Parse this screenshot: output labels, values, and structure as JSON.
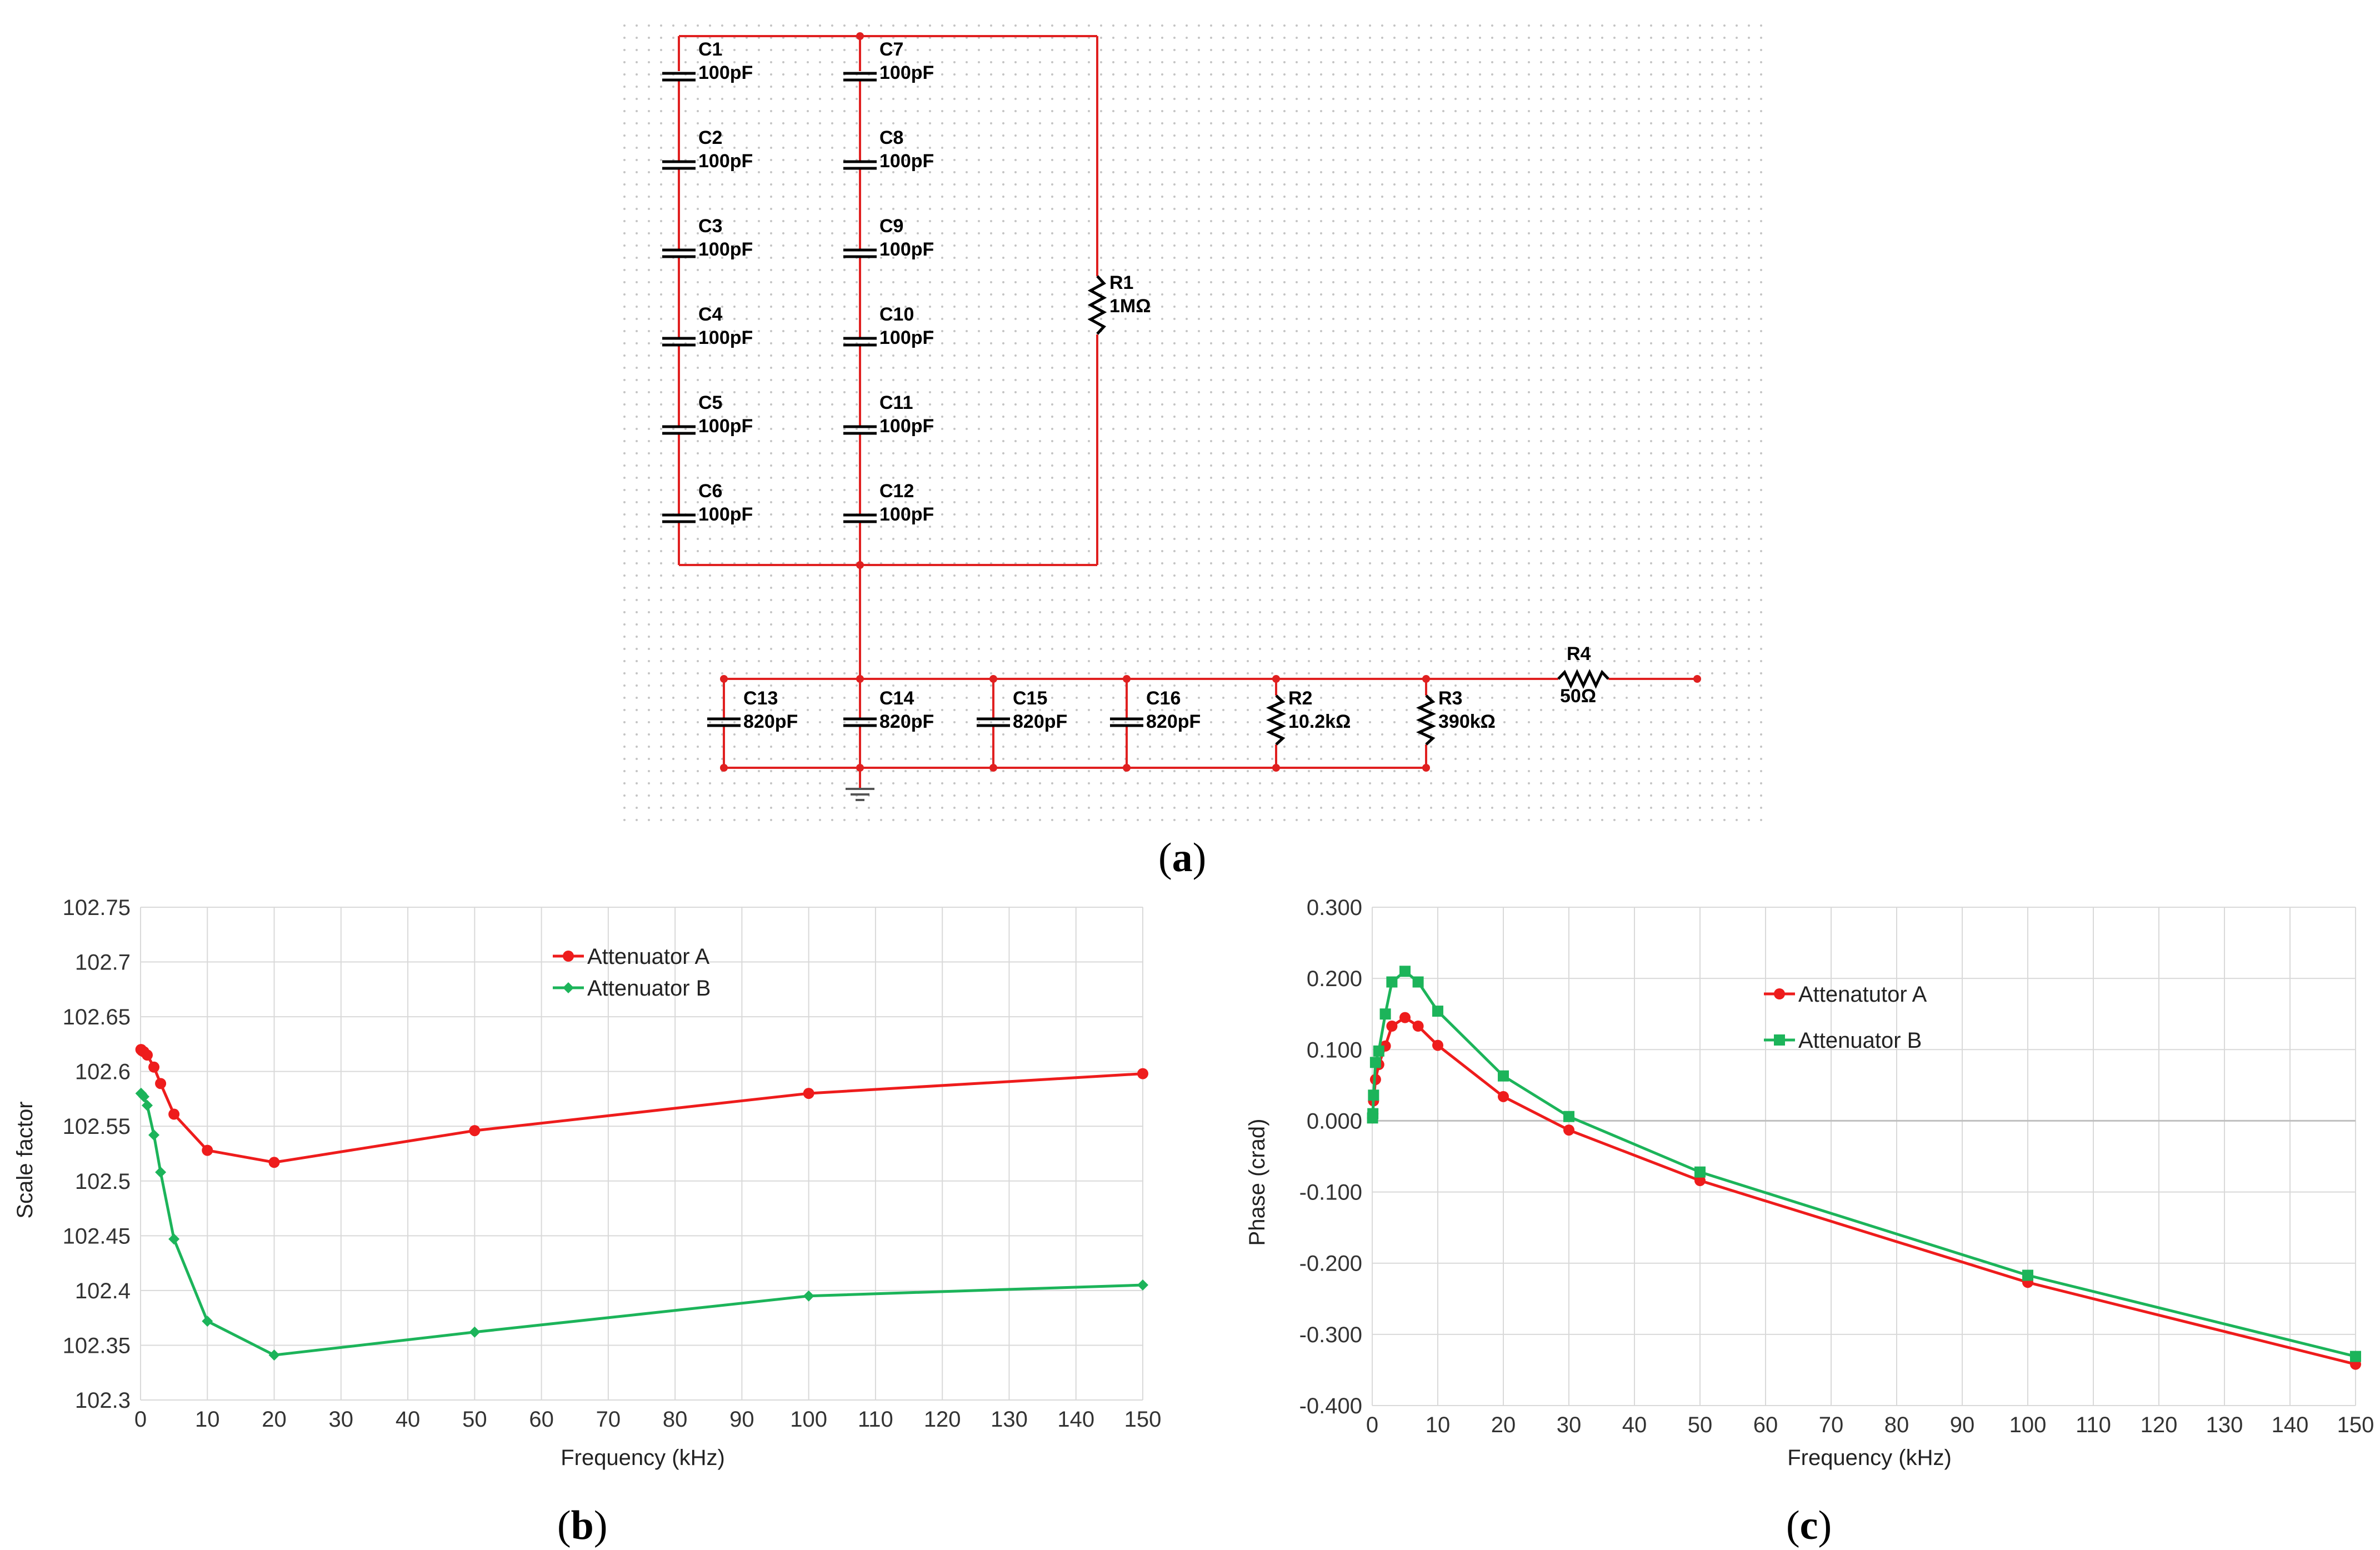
{
  "schematic": {
    "left_column": [
      {
        "name": "C1",
        "value": "100pF"
      },
      {
        "name": "C2",
        "value": "100pF"
      },
      {
        "name": "C3",
        "value": "100pF"
      },
      {
        "name": "C4",
        "value": "100pF"
      },
      {
        "name": "C5",
        "value": "100pF"
      },
      {
        "name": "C6",
        "value": "100pF"
      }
    ],
    "right_column": [
      {
        "name": "C7",
        "value": "100pF"
      },
      {
        "name": "C8",
        "value": "100pF"
      },
      {
        "name": "C9",
        "value": "100pF"
      },
      {
        "name": "C10",
        "value": "100pF"
      },
      {
        "name": "C11",
        "value": "100pF"
      },
      {
        "name": "C12",
        "value": "100pF"
      }
    ],
    "r1": {
      "name": "R1",
      "value": "1MΩ"
    },
    "bottom_row": [
      {
        "name": "C13",
        "value": "820pF",
        "kind": "capacitor"
      },
      {
        "name": "C14",
        "value": "820pF",
        "kind": "capacitor"
      },
      {
        "name": "C15",
        "value": "820pF",
        "kind": "capacitor"
      },
      {
        "name": "C16",
        "value": "820pF",
        "kind": "capacitor"
      },
      {
        "name": "R2",
        "value": "10.2kΩ",
        "kind": "resistor"
      },
      {
        "name": "R3",
        "value": "390kΩ",
        "kind": "resistor"
      }
    ],
    "r4": {
      "name": "R4",
      "value": "50Ω"
    },
    "wire_color": "#e02020"
  },
  "captions": {
    "a": {
      "open": "(",
      "letter": "a",
      "close": ")"
    },
    "b": {
      "open": "(",
      "letter": "b",
      "close": ")"
    },
    "c": {
      "open": "(",
      "letter": "c",
      "close": ")"
    }
  },
  "chart_data": [
    {
      "id": "b",
      "type": "line",
      "xlabel": "Frequency (kHz)",
      "ylabel": "Scale factor",
      "xlim": [
        0,
        150
      ],
      "ylim": [
        102.3,
        102.75
      ],
      "xticks": [
        0,
        10,
        20,
        30,
        40,
        50,
        60,
        70,
        80,
        90,
        100,
        110,
        120,
        130,
        140,
        150
      ],
      "xtick_labels": [
        "0",
        "10",
        "20",
        "30",
        "40",
        "50",
        "60",
        "70",
        "80",
        "90",
        "100",
        "110",
        "120",
        "130",
        "140",
        "150"
      ],
      "yticks": [
        102.3,
        102.35,
        102.4,
        102.45,
        102.5,
        102.55,
        102.6,
        102.65,
        102.7,
        102.75
      ],
      "ytick_labels": [
        "102.3",
        "102.35",
        "102.4",
        "102.45",
        "102.5",
        "102.55",
        "102.6",
        "102.65",
        "102.7",
        "102.75"
      ],
      "legend_position": "top-center",
      "series": [
        {
          "name": "Attenuator A",
          "color": "#ee1c1c",
          "marker": "circle",
          "x": [
            0.05,
            0.1,
            0.2,
            0.5,
            1,
            2,
            3,
            5,
            10,
            20,
            50,
            100,
            150
          ],
          "y": [
            102.62,
            102.62,
            102.619,
            102.618,
            102.615,
            102.604,
            102.589,
            102.561,
            102.528,
            102.517,
            102.546,
            102.58,
            102.598
          ]
        },
        {
          "name": "Attenuator B",
          "color": "#1cb45a",
          "marker": "diamond",
          "x": [
            0.05,
            0.1,
            0.2,
            0.5,
            1,
            2,
            3,
            5,
            10,
            20,
            50,
            100,
            150
          ],
          "y": [
            102.58,
            102.58,
            102.579,
            102.577,
            102.569,
            102.542,
            102.508,
            102.447,
            102.372,
            102.341,
            102.362,
            102.395,
            102.405
          ]
        }
      ]
    },
    {
      "id": "c",
      "type": "line",
      "xlabel": "Frequency (kHz)",
      "ylabel": "Phase (crad)",
      "xlim": [
        0,
        150
      ],
      "ylim": [
        -0.4,
        0.3
      ],
      "xticks": [
        0,
        10,
        20,
        30,
        40,
        50,
        60,
        70,
        80,
        90,
        100,
        110,
        120,
        130,
        140,
        150
      ],
      "xtick_labels": [
        "0",
        "10",
        "20",
        "30",
        "40",
        "50",
        "60",
        "70",
        "80",
        "90",
        "100",
        "110",
        "120",
        "130",
        "140",
        "150"
      ],
      "yticks": [
        -0.4,
        -0.3,
        -0.2,
        -0.1,
        0.0,
        0.1,
        0.2,
        0.3
      ],
      "ytick_labels": [
        "-0.400",
        "-0.300",
        "-0.200",
        "-0.100",
        "0.000",
        "0.100",
        "0.200",
        "0.300"
      ],
      "legend_position": "upper-middle",
      "series": [
        {
          "name": "Attenatutor A",
          "color": "#ee1c1c",
          "marker": "circle",
          "x": [
            0.05,
            0.1,
            0.2,
            0.5,
            1,
            2,
            3,
            5,
            7,
            10,
            20,
            30,
            50,
            100,
            150
          ],
          "y": [
            0.004,
            0.01,
            0.028,
            0.058,
            0.079,
            0.105,
            0.133,
            0.145,
            0.133,
            0.106,
            0.034,
            -0.013,
            -0.084,
            -0.227,
            -0.342
          ]
        },
        {
          "name": "Attenuator B",
          "color": "#1cb45a",
          "marker": "square",
          "x": [
            0.05,
            0.1,
            0.2,
            0.5,
            1,
            2,
            3,
            5,
            7,
            10,
            20,
            30,
            50,
            100,
            150
          ],
          "y": [
            0.004,
            0.01,
            0.036,
            0.082,
            0.098,
            0.15,
            0.195,
            0.21,
            0.195,
            0.154,
            0.063,
            0.006,
            -0.072,
            -0.217,
            -0.331
          ]
        }
      ]
    }
  ]
}
